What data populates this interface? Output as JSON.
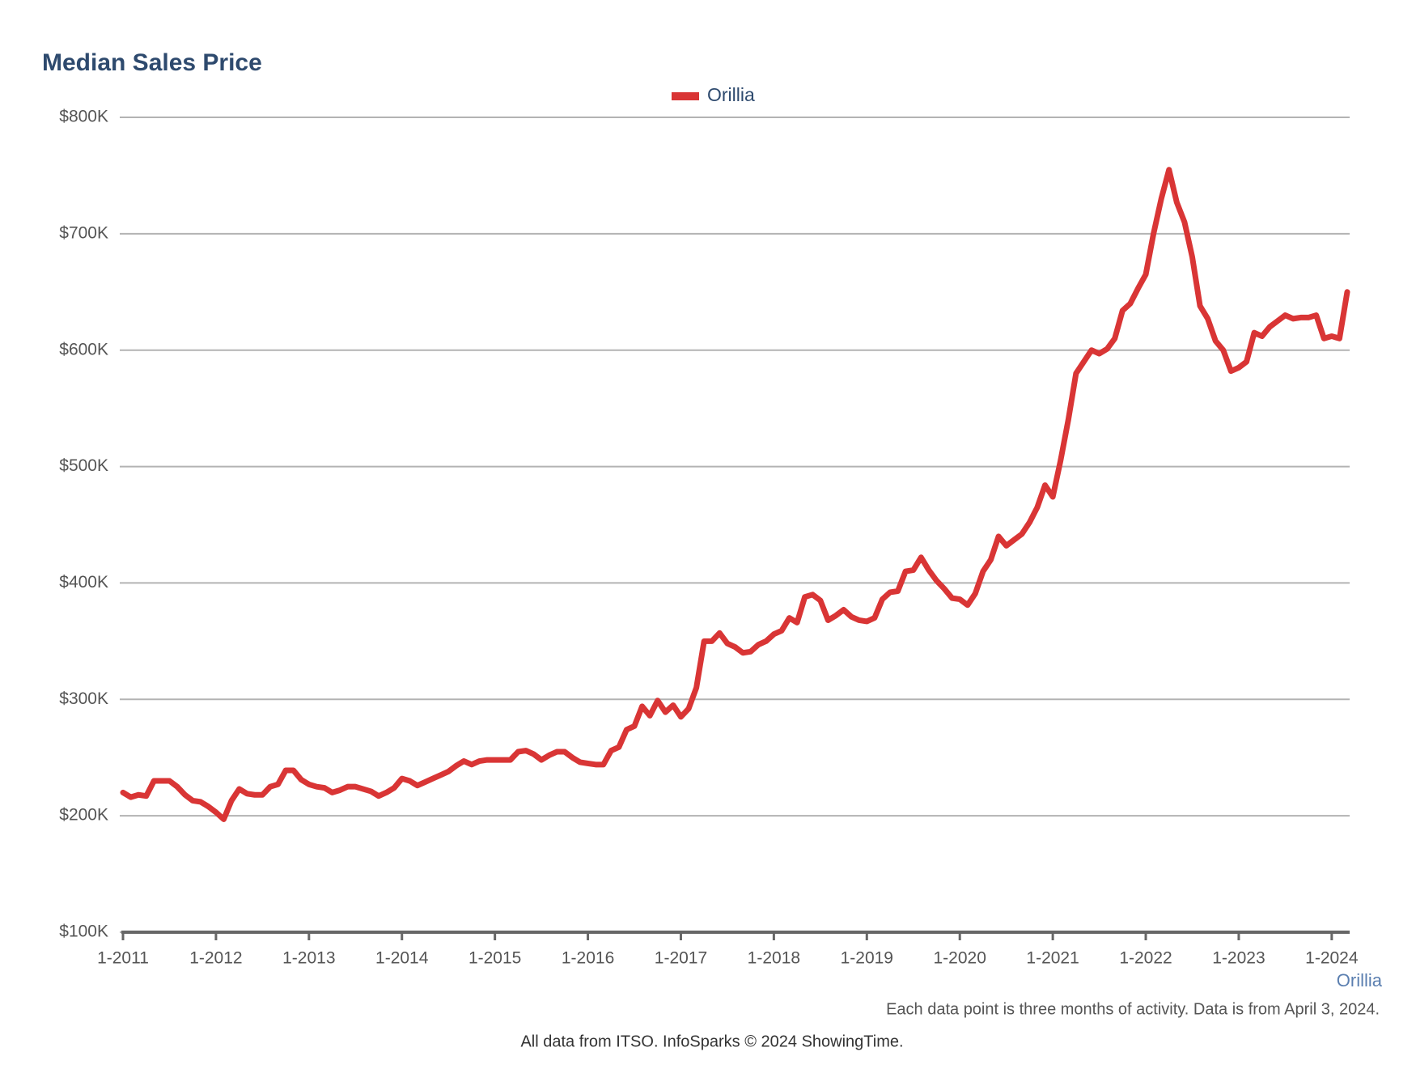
{
  "chart_data": {
    "type": "line",
    "title": "Median Sales Price",
    "footnote": "Each data point is three months of activity. Data is from April 3, 2024.",
    "source": "All data from ITSO. InfoSparks © 2024 ShowingTime.",
    "legend": "top",
    "grid": true,
    "categories": [
      "1-2011",
      null,
      null,
      null,
      null,
      null,
      null,
      null,
      null,
      null,
      null,
      null,
      "1-2012",
      null,
      null,
      null,
      null,
      null,
      null,
      null,
      null,
      null,
      null,
      null,
      "1-2013",
      null,
      null,
      null,
      null,
      null,
      null,
      null,
      null,
      null,
      null,
      null,
      "1-2014",
      null,
      null,
      null,
      null,
      null,
      null,
      null,
      null,
      null,
      null,
      null,
      "1-2015",
      null,
      null,
      null,
      null,
      null,
      null,
      null,
      null,
      null,
      null,
      null,
      "1-2016",
      null,
      null,
      null,
      null,
      null,
      null,
      null,
      null,
      null,
      null,
      null,
      "1-2017",
      null,
      null,
      null,
      null,
      null,
      null,
      null,
      null,
      null,
      null,
      null,
      "1-2018",
      null,
      null,
      null,
      null,
      null,
      null,
      null,
      null,
      null,
      null,
      null,
      "1-2019",
      null,
      null,
      null,
      null,
      null,
      null,
      null,
      null,
      null,
      null,
      null,
      "1-2020",
      null,
      null,
      null,
      null,
      null,
      null,
      null,
      null,
      null,
      null,
      null,
      "1-2021",
      null,
      null,
      null,
      null,
      null,
      null,
      null,
      null,
      null,
      null,
      null,
      "1-2022",
      null,
      null,
      null,
      null,
      null,
      null,
      null,
      null,
      null,
      null,
      null,
      "1-2023",
      null,
      null,
      null,
      null,
      null,
      null,
      null,
      null,
      null,
      null,
      null,
      "1-2024",
      null,
      null
    ],
    "series": [
      {
        "name": "Orillia",
        "color": "#d93535",
        "values": [
          220000,
          216000,
          218000,
          217000,
          230000,
          230000,
          230000,
          225000,
          218000,
          213000,
          212000,
          208000,
          203000,
          197000,
          213000,
          223000,
          219000,
          218000,
          218000,
          225000,
          227000,
          239000,
          239000,
          231000,
          227000,
          225000,
          224000,
          220000,
          222000,
          225000,
          225000,
          223000,
          221000,
          217000,
          220000,
          224000,
          232000,
          230000,
          226000,
          229000,
          232000,
          235000,
          238000,
          243000,
          247000,
          244000,
          247000,
          248000,
          248000,
          248000,
          248000,
          255000,
          256000,
          253000,
          248000,
          252000,
          255000,
          255000,
          250000,
          246000,
          245000,
          244000,
          244000,
          256000,
          259000,
          274000,
          277000,
          294000,
          286000,
          299000,
          289000,
          295000,
          285000,
          292000,
          310000,
          350000,
          350000,
          357000,
          348000,
          345000,
          340000,
          341000,
          347000,
          350000,
          356000,
          359000,
          370000,
          366000,
          388000,
          390000,
          385000,
          368000,
          372000,
          377000,
          371000,
          368000,
          367000,
          370000,
          386000,
          392000,
          393000,
          410000,
          411000,
          422000,
          411000,
          402000,
          395000,
          387000,
          386000,
          381000,
          391000,
          410000,
          420000,
          440000,
          432000,
          437000,
          442000,
          452000,
          465000,
          484000,
          474000,
          505000,
          540000,
          580000,
          590000,
          600000,
          597000,
          601000,
          610000,
          634000,
          640000,
          653000,
          665000,
          700000,
          730000,
          755000,
          727000,
          710000,
          680000,
          638000,
          627000,
          608000,
          600000,
          582000,
          585000,
          590000,
          615000,
          612000,
          620000,
          625000,
          630000,
          627000,
          628000,
          628000,
          630000,
          610000,
          612000,
          610000,
          650000
        ]
      }
    ],
    "ylim": [
      100000,
      800000
    ],
    "yticks": [
      {
        "value": 100000,
        "label": "$100K"
      },
      {
        "value": 200000,
        "label": "$200K"
      },
      {
        "value": 300000,
        "label": "$300K"
      },
      {
        "value": 400000,
        "label": "$400K"
      },
      {
        "value": 500000,
        "label": "$500K"
      },
      {
        "value": 600000,
        "label": "$600K"
      },
      {
        "value": 700000,
        "label": "$700K"
      },
      {
        "value": 800000,
        "label": "$800K"
      }
    ]
  }
}
